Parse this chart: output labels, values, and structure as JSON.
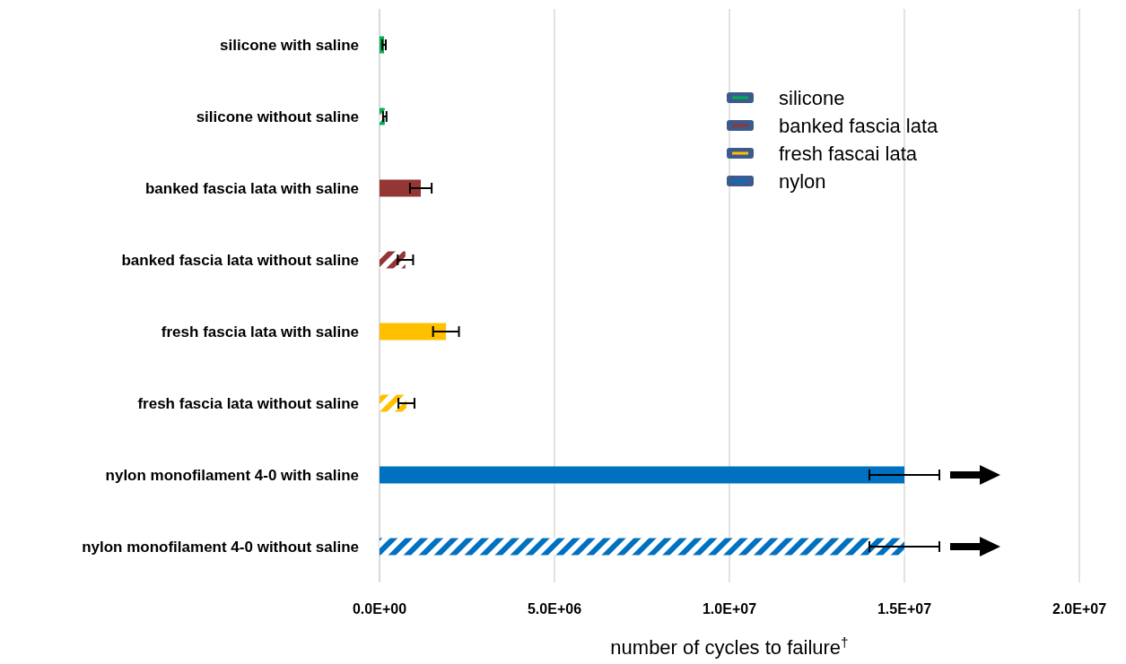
{
  "chart_data": {
    "type": "bar",
    "orientation": "horizontal",
    "xlabel": "number of cycles to failure$^{†}$",
    "categories": [
      "silicone with saline",
      "silicone without saline",
      "banked fascia lata with saline",
      "banked fascia lata without saline",
      "fresh fascia lata with saline",
      "fresh fascia lata without saline",
      "nylon monofilament 4-0 with saline",
      "nylon monofilament 4-0 without saline"
    ],
    "series": [
      {
        "name": "silicone",
        "color": "#00b050",
        "values": [
          130000,
          150000,
          null,
          null,
          null,
          null,
          null,
          null
        ],
        "errors": [
          50000,
          50000,
          null,
          null,
          null,
          null,
          null,
          null
        ]
      },
      {
        "name": "banked fascia lata",
        "color": "#943634",
        "values": [
          null,
          null,
          1180000,
          740000,
          null,
          null,
          null,
          null
        ],
        "errors": [
          null,
          null,
          310000,
          220000,
          null,
          null,
          null,
          null
        ]
      },
      {
        "name": "fresh fascai lata",
        "color": "#ffc000",
        "values": [
          null,
          null,
          null,
          null,
          1900000,
          770000,
          null,
          null
        ],
        "errors": [
          null,
          null,
          null,
          null,
          370000,
          230000,
          null,
          null
        ]
      },
      {
        "name": "nylon",
        "color": "#0070c0",
        "values": [
          null,
          null,
          null,
          null,
          null,
          null,
          15000000,
          15000000
        ],
        "errors": [
          null,
          null,
          null,
          null,
          null,
          null,
          1000000,
          1000000
        ]
      }
    ],
    "xlim": [
      0,
      20000000
    ],
    "xticks": [
      {
        "value": 0,
        "label": "0.0E+00"
      },
      {
        "value": 5000000,
        "label": "5.0E+06"
      },
      {
        "value": 10000000,
        "label": "1.0E+07"
      },
      {
        "value": 15000000,
        "label": "1.5E+07"
      },
      {
        "value": 20000000,
        "label": "2.0E+07"
      }
    ],
    "grid": "x",
    "legend": "top right"
  }
}
